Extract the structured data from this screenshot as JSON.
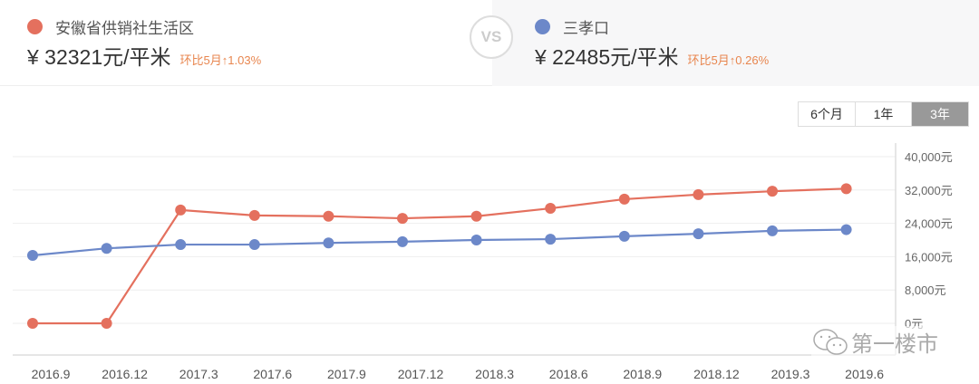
{
  "compare": {
    "left": {
      "name": "安徽省供销社生活区",
      "price": "¥ 32321元/平米",
      "change": "环比5月↑1.03%",
      "color": "#e4705e"
    },
    "vs_label": "VS",
    "right": {
      "name": "三孝口",
      "price": "¥ 22485元/平米",
      "change": "环比5月↑0.26%",
      "color": "#6c88c9"
    },
    "change_color": "#e8864f"
  },
  "range": {
    "options": [
      "6个月",
      "1年",
      "3年"
    ],
    "selected": "3年"
  },
  "watermark": "第一楼市",
  "chart_data": {
    "type": "line",
    "title": "",
    "xlabel": "",
    "ylabel": "",
    "categories": [
      "2016.9",
      "2016.12",
      "2017.3",
      "2017.6",
      "2017.9",
      "2017.12",
      "2018.3",
      "2018.6",
      "2018.9",
      "2018.12",
      "2019.3",
      "2019.6"
    ],
    "series": [
      {
        "name": "安徽省供销社生活区",
        "color": "#e4705e",
        "values": [
          0,
          0,
          27200,
          25900,
          25700,
          25200,
          25700,
          27600,
          29800,
          30900,
          31700,
          32321
        ]
      },
      {
        "name": "三孝口",
        "color": "#6c88c9",
        "values": [
          16300,
          18000,
          18900,
          18900,
          19300,
          19600,
          20000,
          20200,
          20900,
          21500,
          22200,
          22485
        ]
      }
    ],
    "y_ticks": [
      "0元",
      "8,000元",
      "16,000元",
      "24,000元",
      "32,000元",
      "40,000元"
    ],
    "ylim": [
      0,
      40000
    ],
    "grid": true,
    "y_axis_position": "right"
  }
}
